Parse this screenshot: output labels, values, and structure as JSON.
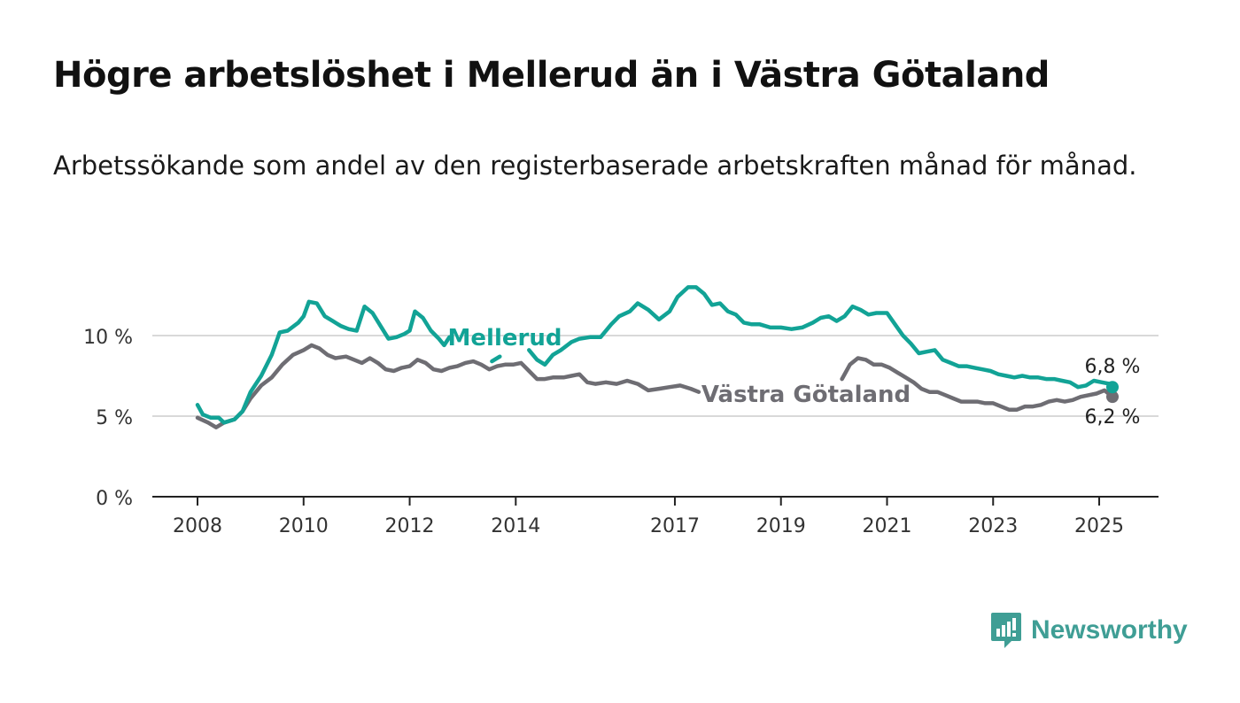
{
  "title": "Högre arbetslöshet i Mellerud än i Västra Götaland",
  "subtitle": "Arbetssökande som andel av den registerbaserade arbetskraften månad för månad.",
  "brand": {
    "name": "Newsworthy",
    "icon": "newsworthy-logo-icon"
  },
  "colors": {
    "mellerud": "#12a396",
    "vg": "#6e6d73",
    "grid": "#d9d9d9",
    "axis": "#222222"
  },
  "chart_data": {
    "type": "line",
    "x_ticks": [
      "2008",
      "2010",
      "2012",
      "2014",
      "2017",
      "2019",
      "2021",
      "2023",
      "2025"
    ],
    "y_ticks": [
      "0 %",
      "5 %",
      "10 %"
    ],
    "ylim": [
      0,
      14
    ],
    "grid": true,
    "series": [
      {
        "name": "Mellerud",
        "end_label": "6,8 %",
        "points": [
          [
            2008.0,
            5.7
          ],
          [
            2008.1,
            5.1
          ],
          [
            2008.25,
            4.9
          ],
          [
            2008.4,
            4.9
          ],
          [
            2008.5,
            4.6
          ],
          [
            2008.7,
            4.8
          ],
          [
            2008.85,
            5.3
          ],
          [
            2009.0,
            6.5
          ],
          [
            2009.2,
            7.5
          ],
          [
            2009.4,
            8.8
          ],
          [
            2009.55,
            10.2
          ],
          [
            2009.7,
            10.3
          ],
          [
            2009.9,
            10.8
          ],
          [
            2010.0,
            11.2
          ],
          [
            2010.1,
            12.1
          ],
          [
            2010.25,
            12.0
          ],
          [
            2010.4,
            11.2
          ],
          [
            2010.55,
            10.9
          ],
          [
            2010.7,
            10.6
          ],
          [
            2010.85,
            10.4
          ],
          [
            2011.0,
            10.3
          ],
          [
            2011.15,
            11.8
          ],
          [
            2011.3,
            11.4
          ],
          [
            2011.45,
            10.6
          ],
          [
            2011.6,
            9.8
          ],
          [
            2011.75,
            9.9
          ],
          [
            2011.9,
            10.1
          ],
          [
            2012.0,
            10.3
          ],
          [
            2012.1,
            11.5
          ],
          [
            2012.25,
            11.1
          ],
          [
            2012.4,
            10.3
          ],
          [
            2012.55,
            9.8
          ],
          [
            2012.65,
            9.4
          ],
          [
            2012.75,
            9.9
          ],
          [
            2013.55,
            8.4
          ],
          [
            2013.7,
            8.7
          ],
          [
            2014.25,
            9.1
          ],
          [
            2014.4,
            8.5
          ],
          [
            2014.55,
            8.2
          ],
          [
            2014.7,
            8.8
          ],
          [
            2014.85,
            9.1
          ],
          [
            2015.05,
            9.6
          ],
          [
            2015.2,
            9.8
          ],
          [
            2015.4,
            9.9
          ],
          [
            2015.6,
            9.9
          ],
          [
            2015.8,
            10.7
          ],
          [
            2015.95,
            11.2
          ],
          [
            2016.15,
            11.5
          ],
          [
            2016.3,
            12.0
          ],
          [
            2016.5,
            11.6
          ],
          [
            2016.7,
            11.0
          ],
          [
            2016.9,
            11.5
          ],
          [
            2017.05,
            12.4
          ],
          [
            2017.25,
            13.0
          ],
          [
            2017.4,
            13.0
          ],
          [
            2017.55,
            12.6
          ],
          [
            2017.7,
            11.9
          ],
          [
            2017.85,
            12.0
          ],
          [
            2018.0,
            11.5
          ],
          [
            2018.15,
            11.3
          ],
          [
            2018.3,
            10.8
          ],
          [
            2018.45,
            10.7
          ],
          [
            2018.6,
            10.7
          ],
          [
            2018.8,
            10.5
          ],
          [
            2019.0,
            10.5
          ],
          [
            2019.2,
            10.4
          ],
          [
            2019.4,
            10.5
          ],
          [
            2019.6,
            10.8
          ],
          [
            2019.75,
            11.1
          ],
          [
            2019.9,
            11.2
          ],
          [
            2020.05,
            10.9
          ],
          [
            2020.2,
            11.2
          ],
          [
            2020.35,
            11.8
          ],
          [
            2020.5,
            11.6
          ],
          [
            2020.65,
            11.3
          ],
          [
            2020.8,
            11.4
          ],
          [
            2021.0,
            11.4
          ],
          [
            2021.15,
            10.7
          ],
          [
            2021.3,
            10.0
          ],
          [
            2021.45,
            9.5
          ],
          [
            2021.6,
            8.9
          ],
          [
            2021.75,
            9.0
          ],
          [
            2021.9,
            9.1
          ],
          [
            2022.05,
            8.5
          ],
          [
            2022.2,
            8.3
          ],
          [
            2022.35,
            8.1
          ],
          [
            2022.5,
            8.1
          ],
          [
            2022.65,
            8.0
          ],
          [
            2022.8,
            7.9
          ],
          [
            2022.95,
            7.8
          ],
          [
            2023.1,
            7.6
          ],
          [
            2023.25,
            7.5
          ],
          [
            2023.4,
            7.4
          ],
          [
            2023.55,
            7.5
          ],
          [
            2023.7,
            7.4
          ],
          [
            2023.85,
            7.4
          ],
          [
            2024.0,
            7.3
          ],
          [
            2024.15,
            7.3
          ],
          [
            2024.3,
            7.2
          ],
          [
            2024.45,
            7.1
          ],
          [
            2024.6,
            6.8
          ],
          [
            2024.75,
            6.9
          ],
          [
            2024.9,
            7.2
          ],
          [
            2025.05,
            7.1
          ],
          [
            2025.2,
            7.0
          ],
          [
            2025.25,
            6.8
          ]
        ]
      },
      {
        "name": "Västra Götaland",
        "end_label": "6,2 %",
        "points": [
          [
            2008.0,
            4.9
          ],
          [
            2008.2,
            4.6
          ],
          [
            2008.35,
            4.3
          ],
          [
            2008.5,
            4.6
          ],
          [
            2008.7,
            4.8
          ],
          [
            2008.85,
            5.3
          ],
          [
            2009.0,
            6.1
          ],
          [
            2009.2,
            6.9
          ],
          [
            2009.4,
            7.4
          ],
          [
            2009.6,
            8.2
          ],
          [
            2009.8,
            8.8
          ],
          [
            2010.0,
            9.1
          ],
          [
            2010.15,
            9.4
          ],
          [
            2010.3,
            9.2
          ],
          [
            2010.45,
            8.8
          ],
          [
            2010.6,
            8.6
          ],
          [
            2010.8,
            8.7
          ],
          [
            2010.95,
            8.5
          ],
          [
            2011.1,
            8.3
          ],
          [
            2011.25,
            8.6
          ],
          [
            2011.4,
            8.3
          ],
          [
            2011.55,
            7.9
          ],
          [
            2011.7,
            7.8
          ],
          [
            2011.85,
            8.0
          ],
          [
            2012.0,
            8.1
          ],
          [
            2012.15,
            8.5
          ],
          [
            2012.3,
            8.3
          ],
          [
            2012.45,
            7.9
          ],
          [
            2012.6,
            7.8
          ],
          [
            2012.75,
            8.0
          ],
          [
            2012.9,
            8.1
          ],
          [
            2013.05,
            8.3
          ],
          [
            2013.2,
            8.4
          ],
          [
            2013.35,
            8.2
          ],
          [
            2013.5,
            7.9
          ],
          [
            2013.65,
            8.1
          ],
          [
            2013.8,
            8.2
          ],
          [
            2013.95,
            8.2
          ],
          [
            2014.1,
            8.3
          ],
          [
            2014.25,
            7.8
          ],
          [
            2014.4,
            7.3
          ],
          [
            2014.55,
            7.3
          ],
          [
            2014.7,
            7.4
          ],
          [
            2014.9,
            7.4
          ],
          [
            2015.05,
            7.5
          ],
          [
            2015.2,
            7.6
          ],
          [
            2015.35,
            7.1
          ],
          [
            2015.5,
            7.0
          ],
          [
            2015.7,
            7.1
          ],
          [
            2015.9,
            7.0
          ],
          [
            2016.1,
            7.2
          ],
          [
            2016.3,
            7.0
          ],
          [
            2016.5,
            6.6
          ],
          [
            2016.7,
            6.7
          ],
          [
            2016.9,
            6.8
          ],
          [
            2017.1,
            6.9
          ],
          [
            2017.3,
            6.7
          ],
          [
            2017.45,
            6.5
          ],
          [
            2020.15,
            7.3
          ],
          [
            2020.3,
            8.2
          ],
          [
            2020.45,
            8.6
          ],
          [
            2020.6,
            8.5
          ],
          [
            2020.75,
            8.2
          ],
          [
            2020.9,
            8.2
          ],
          [
            2021.05,
            8.0
          ],
          [
            2021.2,
            7.7
          ],
          [
            2021.35,
            7.4
          ],
          [
            2021.5,
            7.1
          ],
          [
            2021.65,
            6.7
          ],
          [
            2021.8,
            6.5
          ],
          [
            2021.95,
            6.5
          ],
          [
            2022.1,
            6.3
          ],
          [
            2022.25,
            6.1
          ],
          [
            2022.4,
            5.9
          ],
          [
            2022.55,
            5.9
          ],
          [
            2022.7,
            5.9
          ],
          [
            2022.85,
            5.8
          ],
          [
            2023.0,
            5.8
          ],
          [
            2023.15,
            5.6
          ],
          [
            2023.3,
            5.4
          ],
          [
            2023.45,
            5.4
          ],
          [
            2023.6,
            5.6
          ],
          [
            2023.75,
            5.6
          ],
          [
            2023.9,
            5.7
          ],
          [
            2024.05,
            5.9
          ],
          [
            2024.2,
            6.0
          ],
          [
            2024.35,
            5.9
          ],
          [
            2024.5,
            6.0
          ],
          [
            2024.65,
            6.2
          ],
          [
            2024.8,
            6.3
          ],
          [
            2024.95,
            6.4
          ],
          [
            2025.1,
            6.6
          ],
          [
            2025.25,
            6.2
          ]
        ]
      }
    ]
  }
}
